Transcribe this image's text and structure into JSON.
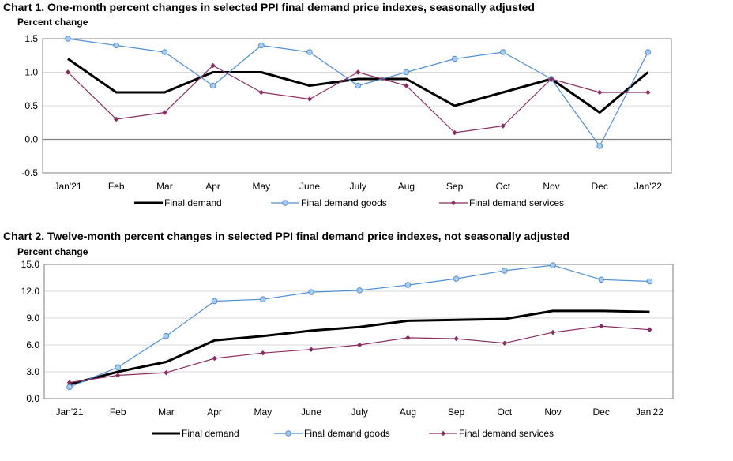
{
  "colors": {
    "final_demand": "#000000",
    "final_demand_goods": "#4f8fd6",
    "goods_marker_fill": "#a9cdf2",
    "final_demand_services": "#8c2d62",
    "grid": "#d9d9d9",
    "axis": "#7f7f7f"
  },
  "chart_data": [
    {
      "type": "line",
      "title": "Chart 1. One-month percent changes in selected PPI final demand price indexes, seasonally adjusted",
      "ylabel": "Percent change",
      "xlabel": "",
      "ylim": [
        -0.5,
        1.5
      ],
      "yticks": [
        "1.5",
        "1.0",
        "0.5",
        "0.0",
        "-0.5"
      ],
      "ytick_values": [
        1.5,
        1.0,
        0.5,
        0.0,
        -0.5
      ],
      "categories": [
        "Jan'21",
        "Feb",
        "Mar",
        "Apr",
        "May",
        "June",
        "July",
        "Aug",
        "Sep",
        "Oct",
        "Nov",
        "Dec",
        "Jan'22"
      ],
      "legend_position": "bottom",
      "series": [
        {
          "name": "Final demand",
          "values": [
            1.2,
            0.7,
            0.7,
            1.0,
            1.0,
            0.8,
            0.9,
            0.9,
            0.5,
            0.7,
            0.9,
            0.4,
            1.0
          ]
        },
        {
          "name": "Final demand goods",
          "values": [
            1.5,
            1.4,
            1.3,
            0.8,
            1.4,
            1.3,
            0.8,
            1.0,
            1.2,
            1.3,
            0.9,
            -0.1,
            1.3
          ]
        },
        {
          "name": "Final demand services",
          "values": [
            1.0,
            0.3,
            0.4,
            1.1,
            0.7,
            0.6,
            1.0,
            0.8,
            0.1,
            0.2,
            0.9,
            0.7,
            0.7
          ]
        }
      ]
    },
    {
      "type": "line",
      "title": "Chart 2. Twelve-month percent changes in selected PPI final demand price indexes, not seasonally adjusted",
      "ylabel": "Percent change",
      "xlabel": "",
      "ylim": [
        0.0,
        15.0
      ],
      "yticks": [
        "15.0",
        "12.0",
        "9.0",
        "6.0",
        "3.0",
        "0.0"
      ],
      "ytick_values": [
        15.0,
        12.0,
        9.0,
        6.0,
        3.0,
        0.0
      ],
      "categories": [
        "Jan'21",
        "Feb",
        "Mar",
        "Apr",
        "May",
        "June",
        "July",
        "Aug",
        "Sep",
        "Oct",
        "Nov",
        "Dec",
        "Jan'22"
      ],
      "legend_position": "bottom",
      "series": [
        {
          "name": "Final demand",
          "values": [
            1.6,
            3.0,
            4.1,
            6.5,
            7.0,
            7.6,
            8.0,
            8.7,
            8.8,
            8.9,
            9.8,
            9.8,
            9.7
          ]
        },
        {
          "name": "Final demand goods",
          "values": [
            1.3,
            3.5,
            7.0,
            10.9,
            11.1,
            11.9,
            12.1,
            12.7,
            13.4,
            14.3,
            14.9,
            13.3,
            13.1
          ]
        },
        {
          "name": "Final demand services",
          "values": [
            1.8,
            2.6,
            2.9,
            4.5,
            5.1,
            5.5,
            6.0,
            6.8,
            6.7,
            6.2,
            7.4,
            8.1,
            7.7
          ]
        }
      ]
    }
  ]
}
